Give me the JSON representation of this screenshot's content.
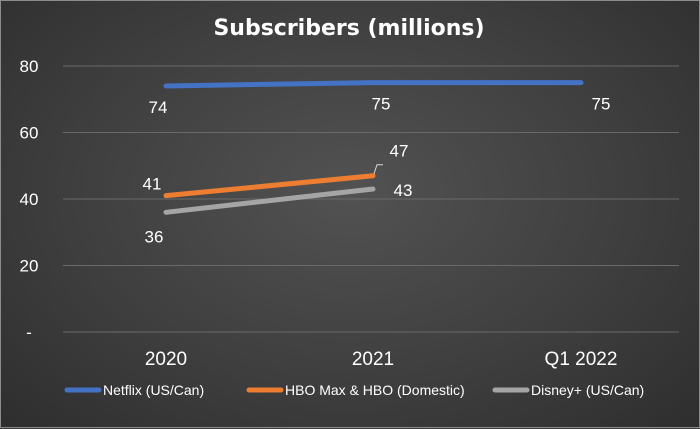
{
  "chart_data": {
    "type": "line",
    "title": "Subscribers (millions)",
    "categories": [
      "2020",
      "2021",
      "Q1 2022"
    ],
    "yticks": [
      0,
      20,
      40,
      60,
      80
    ],
    "ytick_labels": [
      "-",
      "20",
      "40",
      "60",
      "80"
    ],
    "ylim": [
      0,
      80
    ],
    "grid": true,
    "legend_position": "bottom",
    "series": [
      {
        "name": "Netflix (US/Can)",
        "values": [
          74,
          75,
          75
        ],
        "labels": [
          "74",
          "75",
          "75"
        ],
        "color": "#4472c4"
      },
      {
        "name": "HBO Max & HBO (Domestic)",
        "values": [
          41,
          47,
          null
        ],
        "labels": [
          "41",
          "47",
          ""
        ],
        "color": "#ed7d31"
      },
      {
        "name": "Disney+ (US/Can)",
        "values": [
          36,
          43,
          null
        ],
        "labels": [
          "36",
          "43",
          ""
        ],
        "color": "#a5a5a5"
      }
    ]
  }
}
